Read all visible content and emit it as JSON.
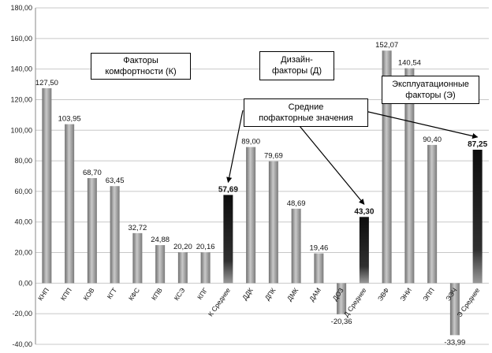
{
  "chart_data": {
    "type": "bar",
    "title": "",
    "xlabel": "",
    "ylabel": "",
    "ylim": [
      -40,
      180
    ],
    "yticks": [
      "-40,00",
      "-20,00",
      "0,00",
      "20,00",
      "40,00",
      "60,00",
      "80,00",
      "100,00",
      "120,00",
      "140,00",
      "160,00",
      "180,00"
    ],
    "grid": true,
    "categories": [
      "КНП",
      "КПП",
      "КОВ",
      "КГТ",
      "КФС",
      "КПВ",
      "КСЭ",
      "КПГ",
      "К Среднее",
      "ДДК",
      "ДПК",
      "ДМК",
      "ДАМ",
      "ДОЗ",
      "Д Среднее",
      "ЭВФ",
      "ЭНИ",
      "ЭПП",
      "ЭЭЧ",
      "Э Среднее"
    ],
    "values": [
      127.5,
      103.95,
      68.7,
      63.45,
      32.72,
      24.88,
      20.2,
      20.16,
      57.69,
      89.0,
      79.69,
      48.69,
      19.46,
      -20.36,
      43.3,
      152.07,
      140.54,
      90.4,
      -33.99,
      87.25
    ],
    "value_labels": [
      "127,50",
      "103,95",
      "68,70",
      "63,45",
      "32,72",
      "24,88",
      "20,20",
      "20,16",
      "57,69",
      "89,00",
      "79,69",
      "48,69",
      "19,46",
      "-20,36",
      "43,30",
      "152,07",
      "140,54",
      "90,40",
      "-33,99",
      "87,25"
    ],
    "average_indices": [
      8,
      14,
      19
    ],
    "annotations": {
      "comfort": [
        "Факторы",
        "комфортности (К)"
      ],
      "design": [
        "Дизайн-",
        "факторы (Д)"
      ],
      "operation": [
        "Эксплуатационные",
        "факторы (Э)"
      ],
      "averages": [
        "Средние",
        "пофакторные значения"
      ]
    },
    "colors": {
      "bar": "#9a9a9a",
      "bar_dark": "#a6a6a6",
      "average": "#1c1c1c",
      "grid": "#c8c8c8"
    }
  }
}
